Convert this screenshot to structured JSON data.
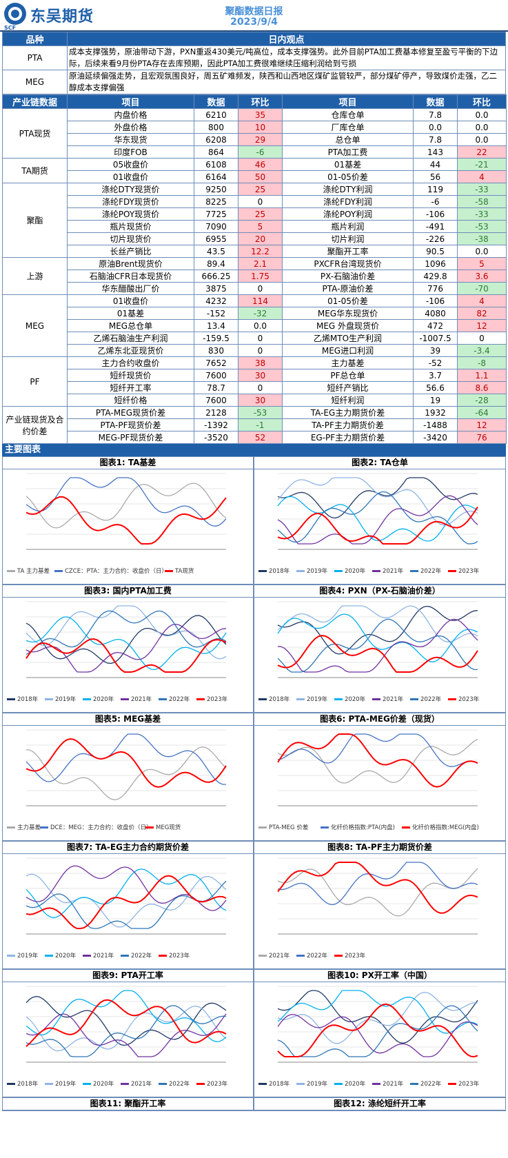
{
  "header": {
    "logo_text": "东吴期货",
    "logo_sub": "SCF",
    "title": "聚酯数据日报",
    "date": "2023/9/4"
  },
  "view": {
    "head_left": "品种",
    "head_right": "日内观点",
    "rows": [
      {
        "name": "PTA",
        "text": "成本支撑强势，原油带动下游，PXN重返430美元/吨高位，成本支撑强势。此外目前PTA加工费基本修复至盈亏平衡的下边际，后续来看9月份PTA存在去库预期，因此PTA加工费很难继续压缩利润给到亏损"
      },
      {
        "name": "MEG",
        "text": "原油延续偏强走势，且宏观氛围良好，周五矿难频发，陕西和山西地区煤矿监管较严，部分煤矿停产，导致煤价走强，乙二醇成本支撑偏强"
      }
    ]
  },
  "table": {
    "headers": [
      "产业链数据",
      "项目",
      "数据",
      "环比",
      "项目",
      "数据",
      "环比"
    ],
    "groups": [
      {
        "cat": "PTA现货",
        "rows": [
          [
            "内盘价格",
            "6210",
            "35",
            "up",
            "仓库仓单",
            "7.8",
            "0.0",
            ""
          ],
          [
            "外盘价格",
            "800",
            "10",
            "up",
            "厂库仓单",
            "0.0",
            "0.0",
            ""
          ],
          [
            "华东现货",
            "6208",
            "29",
            "up",
            "总仓单",
            "7.8",
            "0.0",
            ""
          ],
          [
            "印度FOB",
            "864",
            "-6",
            "dn",
            "PTA加工费",
            "143",
            "22",
            "up"
          ]
        ]
      },
      {
        "cat": "TA期货",
        "rows": [
          [
            "05收盘价",
            "6108",
            "46",
            "up",
            "01基差",
            "44",
            "-21",
            "dn"
          ],
          [
            "01收盘价",
            "6164",
            "50",
            "up",
            "01-05价差",
            "56",
            "4",
            "up"
          ]
        ]
      },
      {
        "cat": "聚酯",
        "rows": [
          [
            "涤纶DTY现货价",
            "9250",
            "25",
            "up",
            "涤纶DTY利润",
            "119",
            "-33",
            "dn"
          ],
          [
            "涤纶FDY现货价",
            "8225",
            "0",
            "",
            "涤纶FDY利润",
            "-6",
            "-58",
            "dn"
          ],
          [
            "涤纶POY现货价",
            "7725",
            "25",
            "up",
            "涤纶POY利润",
            "-106",
            "-33",
            "dn"
          ],
          [
            "瓶片现货价",
            "7090",
            "5",
            "up",
            "瓶片利润",
            "-491",
            "-53",
            "dn"
          ],
          [
            "切片现货价",
            "6955",
            "20",
            "up",
            "切片利润",
            "-226",
            "-38",
            "dn"
          ],
          [
            "长丝产销比",
            "43.5",
            "12.2",
            "up",
            "聚酯开工率",
            "90.5",
            "0.0",
            ""
          ]
        ]
      },
      {
        "cat": "上游",
        "rows": [
          [
            "原油Brent现货价",
            "89.4",
            "2.1",
            "up",
            "PXCFR台湾现货价",
            "1096",
            "5",
            "up"
          ],
          [
            "石脑油CFR日本现货价",
            "666.25",
            "1.75",
            "up",
            "PX-石脑油价差",
            "429.8",
            "3.6",
            "up"
          ],
          [
            "华东醋酸出厂价",
            "3875",
            "0",
            "",
            "PTA-原油价差",
            "776",
            "-70",
            "dn"
          ]
        ]
      },
      {
        "cat": "MEG",
        "rows": [
          [
            "01收盘价",
            "4232",
            "114",
            "up",
            "01-05价差",
            "-106",
            "4",
            "up"
          ],
          [
            "01基差",
            "-152",
            "-32",
            "dn",
            "MEG华东现货价",
            "4080",
            "82",
            "up"
          ],
          [
            "MEG总仓单",
            "13.4",
            "0.0",
            "",
            "MEG 外盘现货价",
            "472",
            "12",
            "up"
          ],
          [
            "乙烯石脑油生产利润",
            "-159.5",
            "0",
            "",
            "乙烯MTO生产利润",
            "-1007.5",
            "0",
            ""
          ],
          [
            "乙烯东北亚现货价",
            "830",
            "0",
            "",
            "MEG进口利润",
            "39",
            "-3.4",
            "dn"
          ]
        ]
      },
      {
        "cat": "PF",
        "rows": [
          [
            "主力合约收盘价",
            "7652",
            "38",
            "up",
            "主力基差",
            "-52",
            "-8",
            "dn"
          ],
          [
            "短纤现货价",
            "7600",
            "30",
            "up",
            "PF总仓单",
            "3.7",
            "1.1",
            "up"
          ],
          [
            "短纤开工率",
            "78.7",
            "0",
            "",
            "短纤产销比",
            "56.6",
            "8.6",
            "up"
          ],
          [
            "短纤价格",
            "7600",
            "30",
            "up",
            "短纤利润",
            "19",
            "-28",
            "dn"
          ]
        ]
      },
      {
        "cat": "产业链现货及合约价差",
        "rows": [
          [
            "PTA-MEG现货价差",
            "2128",
            "-53",
            "dn",
            "TA-EG主力期货价差",
            "1932",
            "-64",
            "dn"
          ],
          [
            "PTA-PF现货价差",
            "-1392",
            "-1",
            "dn",
            "TA-PF主力期货价差",
            "-1488",
            "12",
            "up"
          ],
          [
            "MEG-PF现货价差",
            "-3520",
            "52",
            "up",
            "EG-PF主力期货价差",
            "-3420",
            "76",
            "up"
          ]
        ]
      }
    ]
  },
  "charts_section": "主要图表",
  "charts": [
    {
      "title": "图表1: TA基差",
      "legend": [
        "TA 主力基差",
        "CZCE：PTA：主力合约：收盘价（日）",
        "TA现货"
      ]
    },
    {
      "title": "图表2: TA仓单",
      "legend": [
        "2018年",
        "2019年",
        "2020年",
        "2021年",
        "2022年",
        "2023年"
      ]
    },
    {
      "title": "图表3: 国内PTA加工费",
      "legend": [
        "2018年",
        "2019年",
        "2020年",
        "2021年",
        "2022年",
        "2023年"
      ]
    },
    {
      "title": "图表4: PXN（PX-石脑油价差）",
      "legend": [
        "2018年",
        "2019年",
        "2020年",
        "2021年",
        "2022年",
        "2023年"
      ]
    },
    {
      "title": "图表5: MEG基差",
      "legend": [
        "主力基差",
        "DCE：MEG：主力合约：收盘价（日）",
        "MEG现货"
      ]
    },
    {
      "title": "图表6: PTA-MEG价差（现货）",
      "legend": [
        "PTA-MEG 价差",
        "化纤价格指数:PTA(内盘)",
        "化纤价格指数:MEG(内盘)"
      ]
    },
    {
      "title": "图表7: TA-EG主力合约期货价差",
      "legend": [
        "2019年",
        "2020年",
        "2021年",
        "2022年",
        "2023年"
      ]
    },
    {
      "title": "图表8: TA-PF主力期货价差",
      "legend": [
        "2021年",
        "2022年",
        "2023年"
      ]
    },
    {
      "title": "图表9: PTA开工率",
      "legend": [
        "2018年",
        "2019年",
        "2020年",
        "2021年",
        "2022年",
        "2023年"
      ]
    },
    {
      "title": "图表10: PX开工率（中国）",
      "legend": [
        "2018年",
        "2019年",
        "2020年",
        "2021年",
        "2022年",
        "2023年"
      ]
    },
    {
      "title": "图表11: 聚酯开工率",
      "legend": []
    },
    {
      "title": "图表12: 涤纶短纤开工率",
      "legend": []
    }
  ],
  "colors": {
    "brand": "#1f5fa8",
    "up_bg": "#ffc7ce",
    "dn_bg": "#c6efce",
    "s2018": "#1f3864",
    "s2019": "#8eb4e3",
    "s2020": "#00b0f0",
    "s2021": "#7030a0",
    "s2022": "#2e75b6",
    "s2023": "#ff0000"
  }
}
